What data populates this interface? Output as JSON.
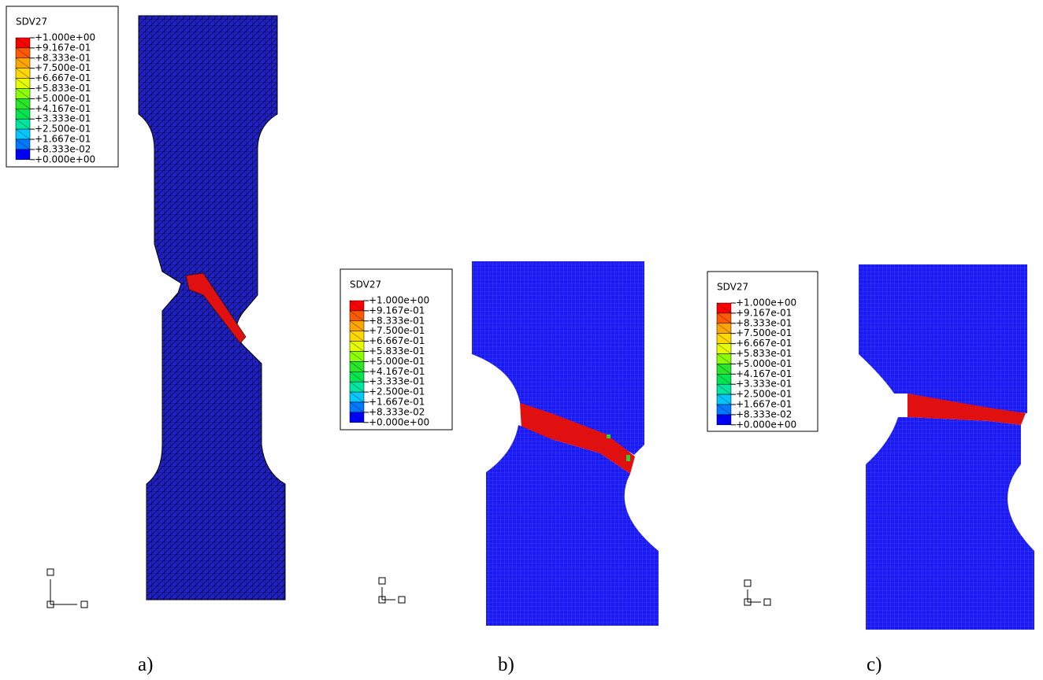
{
  "panels": [
    {
      "label": "a)",
      "legend": {
        "title": "SDV27",
        "entries": [
          "+1.000e+00",
          "+9.167e-01",
          "+8.333e-01",
          "+7.500e-01",
          "+6.667e-01",
          "+5.833e-01",
          "+5.000e-01",
          "+4.167e-01",
          "+3.333e-01",
          "+2.500e-01",
          "+1.667e-01",
          "+8.333e-02",
          "+0.000e+00"
        ]
      }
    },
    {
      "label": "b)",
      "legend": {
        "title": "SDV27",
        "entries": [
          "+1.000e+00",
          "+9.167e-01",
          "+8.333e-01",
          "+7.500e-01",
          "+6.667e-01",
          "+5.833e-01",
          "+5.000e-01",
          "+4.167e-01",
          "+3.333e-01",
          "+2.500e-01",
          "+1.667e-01",
          "+8.333e-02",
          "+0.000e+00"
        ]
      }
    },
    {
      "label": "c)",
      "legend": {
        "title": "SDV27",
        "entries": [
          "+1.000e+00",
          "+9.167e-01",
          "+8.333e-01",
          "+7.500e-01",
          "+6.667e-01",
          "+5.833e-01",
          "+5.000e-01",
          "+4.167e-01",
          "+3.333e-01",
          "+2.500e-01",
          "+1.667e-01",
          "+8.333e-02",
          "+0.000e+00"
        ]
      }
    }
  ]
}
